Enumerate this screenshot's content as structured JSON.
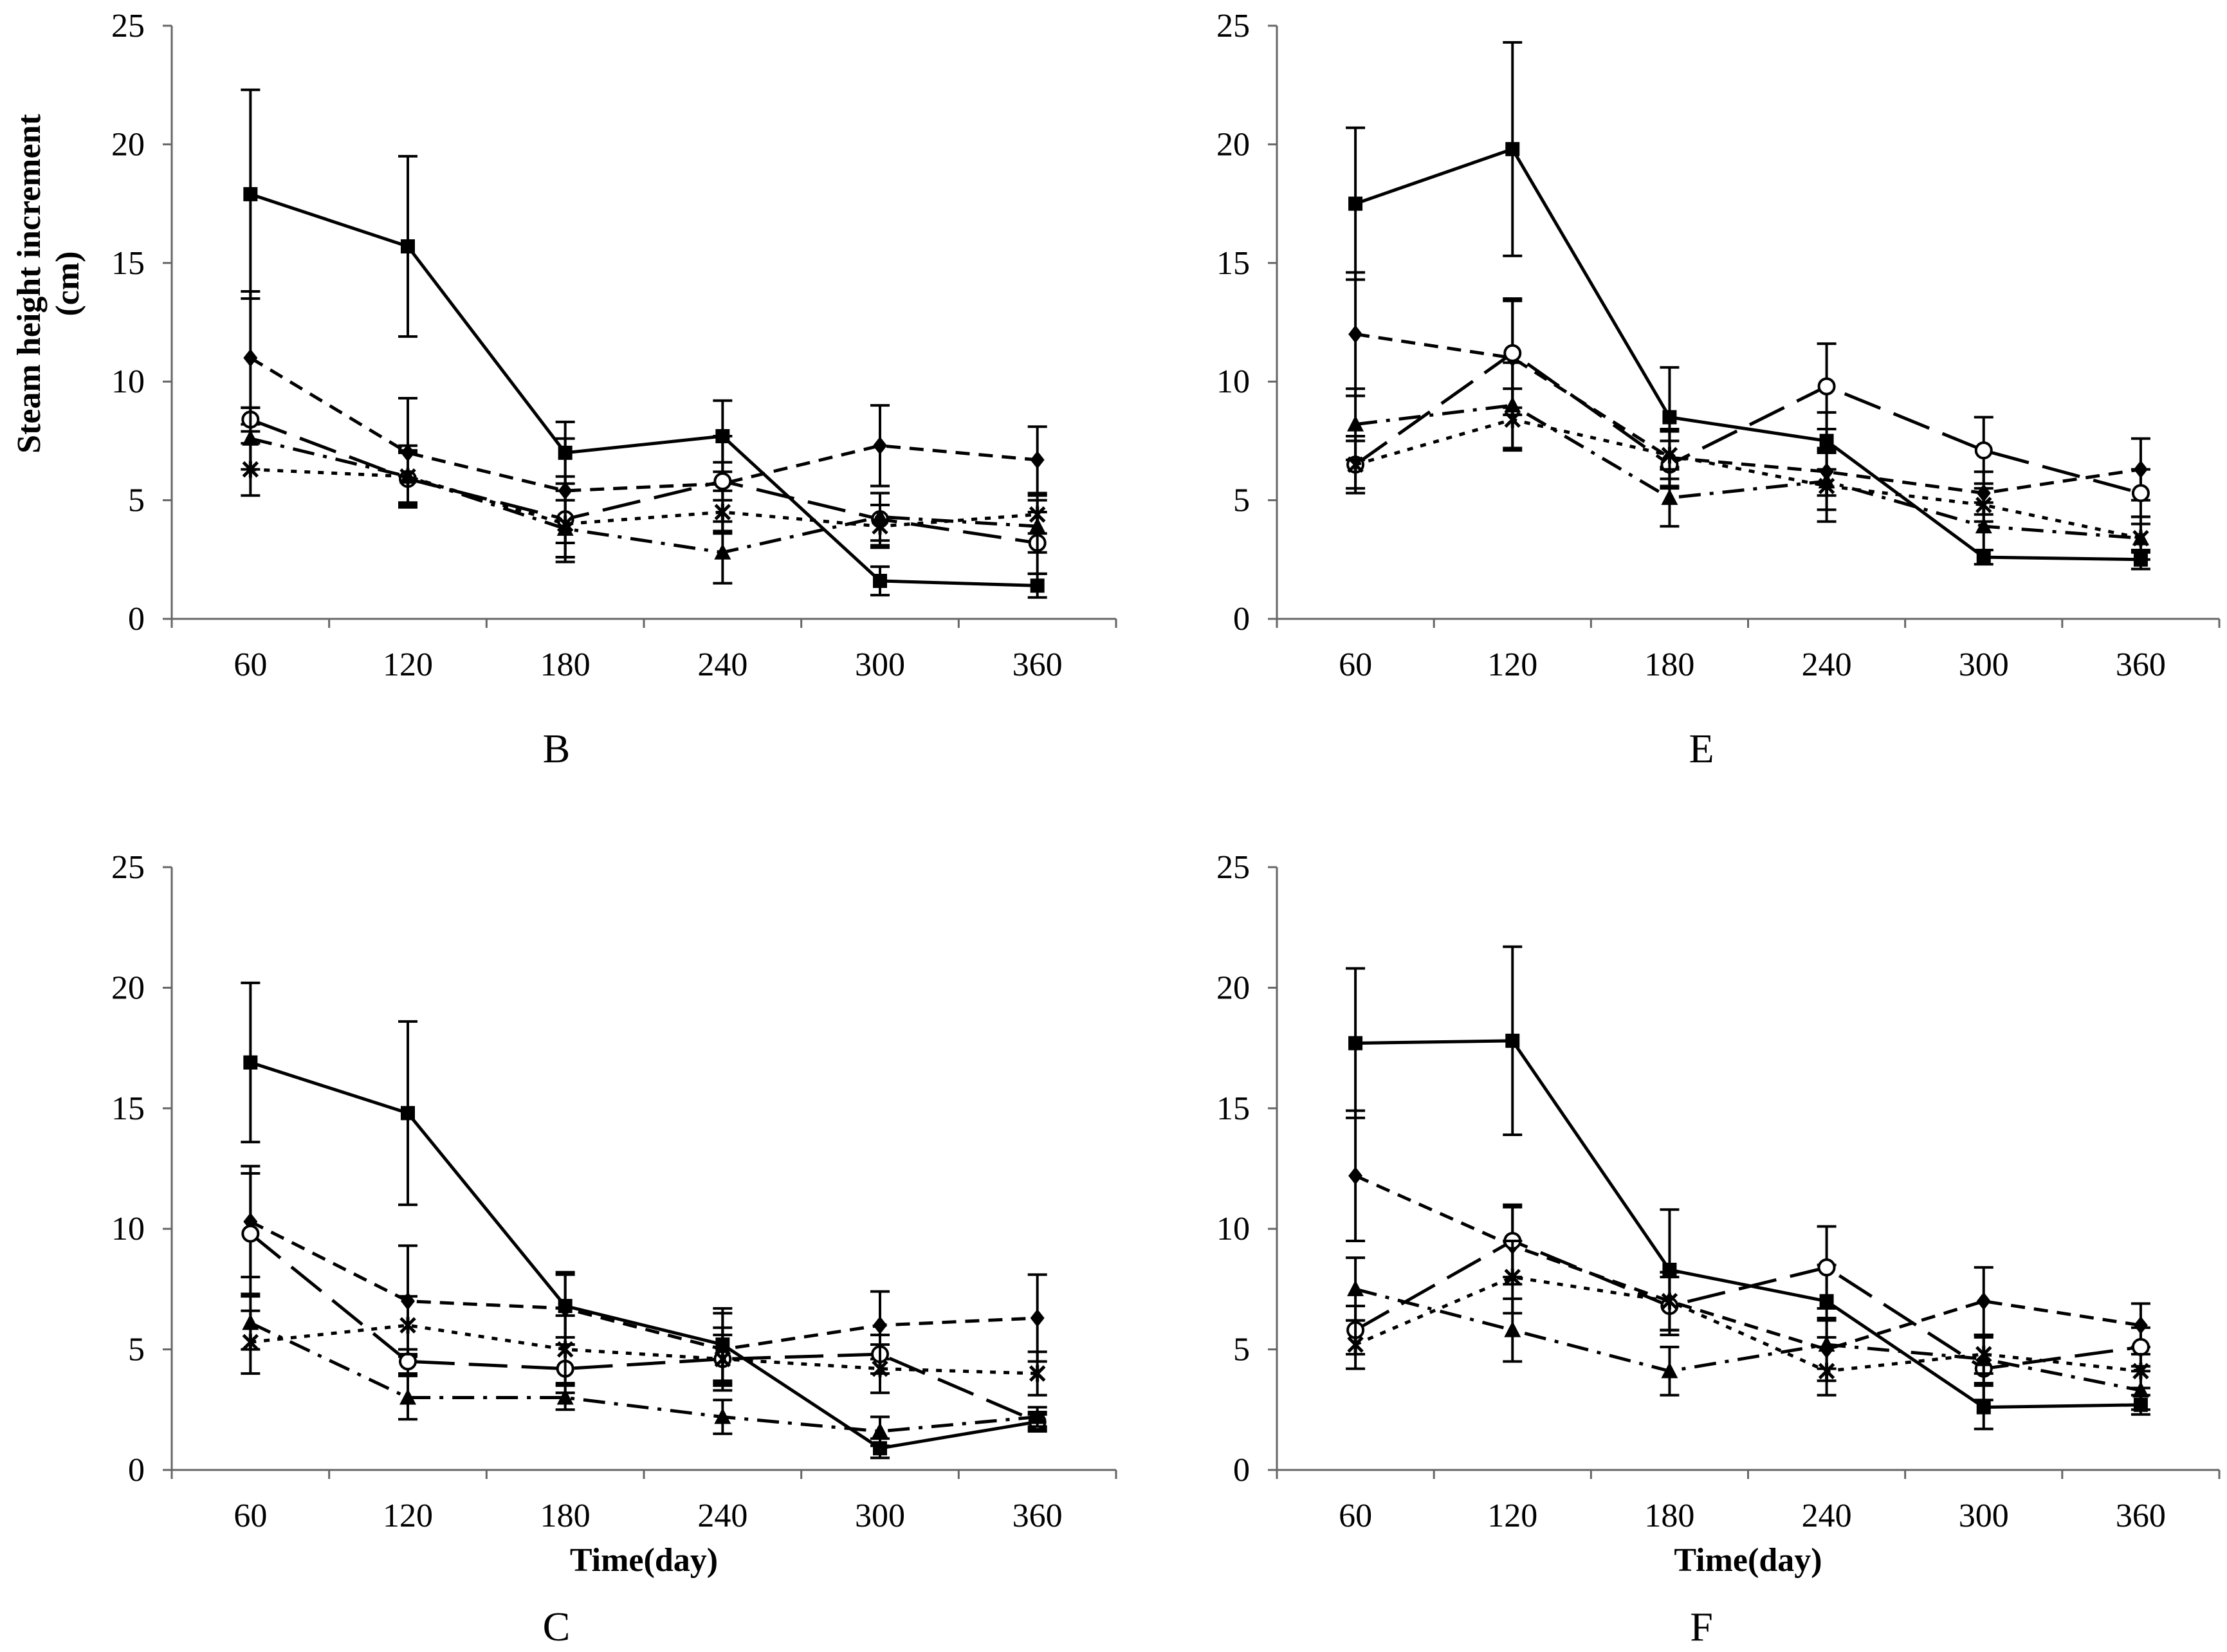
{
  "figure": {
    "title": ""
  },
  "chart_data": [
    {
      "panel": "B",
      "type": "line",
      "panel_label": "B",
      "ylabel": "Steam height increment (cm)",
      "ylabel_line1": "Steam height increment",
      "ylabel_line2": "(cm)",
      "xlabel": "",
      "ylim": [
        0,
        25
      ],
      "yticks": [
        0,
        5,
        10,
        15,
        20,
        25
      ],
      "x": [
        60,
        120,
        180,
        240,
        300,
        360
      ],
      "series": [
        {
          "name": "series-1",
          "marker": "square",
          "dash": "solid",
          "values": [
            17.9,
            15.7,
            7.0,
            7.7,
            1.6,
            1.4
          ],
          "errors": [
            4.4,
            3.8,
            1.3,
            1.5,
            0.6,
            0.5
          ]
        },
        {
          "name": "series-2",
          "marker": "diamond",
          "dash": "short-dash",
          "values": [
            11.0,
            7.0,
            5.4,
            5.7,
            7.3,
            6.7
          ],
          "errors": [
            2.8,
            2.3,
            2.2,
            2.0,
            1.7,
            1.4
          ]
        },
        {
          "name": "series-3",
          "marker": "circle",
          "dash": "long-dash",
          "values": [
            8.4,
            5.9,
            4.2,
            5.8,
            4.2,
            3.2
          ],
          "errors": [
            0.5,
            1.1,
            1.8,
            0.8,
            1.1,
            1.3
          ]
        },
        {
          "name": "series-4",
          "marker": "triangle",
          "dash": "dash-dot",
          "values": [
            7.6,
            6.0,
            3.8,
            2.8,
            4.3,
            3.9
          ],
          "errors": [
            1.3,
            1.1,
            1.2,
            1.3,
            1.0,
            1.1
          ]
        },
        {
          "name": "series-5",
          "marker": "star",
          "dash": "dot",
          "values": [
            6.3,
            6.0,
            4.0,
            4.5,
            3.9,
            4.4
          ],
          "errors": [
            1.1,
            1.3,
            1.4,
            0.9,
            0.9,
            0.8
          ]
        }
      ]
    },
    {
      "panel": "E",
      "type": "line",
      "panel_label": "E",
      "ylabel": "",
      "xlabel": "",
      "ylim": [
        0,
        25
      ],
      "yticks": [
        0,
        5,
        10,
        15,
        20,
        25
      ],
      "x": [
        60,
        120,
        180,
        240,
        300,
        360
      ],
      "series": [
        {
          "name": "series-1",
          "marker": "square",
          "dash": "solid",
          "values": [
            17.5,
            19.8,
            8.5,
            7.5,
            2.6,
            2.5
          ],
          "errors": [
            3.2,
            4.5,
            2.1,
            1.2,
            0.3,
            0.4
          ]
        },
        {
          "name": "series-2",
          "marker": "diamond",
          "dash": "short-dash",
          "values": [
            12.0,
            11.0,
            6.8,
            6.2,
            5.3,
            6.3
          ],
          "errors": [
            2.6,
            2.4,
            1.2,
            1.0,
            0.9,
            1.3
          ]
        },
        {
          "name": "series-3",
          "marker": "circle",
          "dash": "long-dash",
          "values": [
            6.5,
            11.2,
            6.5,
            9.8,
            7.1,
            5.3
          ],
          "errors": [
            1.2,
            2.3,
            1.0,
            1.8,
            1.4,
            1.0
          ]
        },
        {
          "name": "series-4",
          "marker": "triangle",
          "dash": "dash-dot",
          "values": [
            8.2,
            9.0,
            5.1,
            5.8,
            3.9,
            3.4
          ],
          "errors": [
            1.5,
            1.8,
            1.2,
            1.2,
            1.0,
            0.9
          ]
        },
        {
          "name": "series-5",
          "marker": "star",
          "dash": "dot",
          "values": [
            6.5,
            8.4,
            6.9,
            5.6,
            4.8,
            3.4
          ],
          "errors": [
            1.0,
            1.3,
            1.0,
            1.5,
            0.7,
            0.6
          ]
        }
      ]
    },
    {
      "panel": "C",
      "type": "line",
      "panel_label": "C",
      "ylabel": "",
      "xlabel": "Time(day)",
      "ylim": [
        0,
        25
      ],
      "yticks": [
        0,
        5,
        10,
        15,
        20,
        25
      ],
      "x": [
        60,
        120,
        180,
        240,
        300,
        360
      ],
      "series": [
        {
          "name": "series-1",
          "marker": "square",
          "dash": "solid",
          "values": [
            16.9,
            14.8,
            6.8,
            5.2,
            0.9,
            2.0
          ],
          "errors": [
            3.3,
            3.8,
            1.3,
            1.5,
            0.4,
            0.3
          ]
        },
        {
          "name": "series-2",
          "marker": "diamond",
          "dash": "short-dash",
          "values": [
            10.3,
            7.0,
            6.7,
            5.0,
            6.0,
            6.3
          ],
          "errors": [
            2.3,
            2.3,
            1.5,
            1.5,
            1.4,
            1.8
          ]
        },
        {
          "name": "series-3",
          "marker": "circle",
          "dash": "long-dash",
          "values": [
            9.8,
            4.5,
            4.2,
            4.6,
            4.8,
            2.0
          ],
          "errors": [
            2.5,
            0.5,
            1.0,
            1.3,
            0.8,
            0.4
          ]
        },
        {
          "name": "series-4",
          "marker": "triangle",
          "dash": "dash-dot",
          "values": [
            6.1,
            3.0,
            3.0,
            2.2,
            1.6,
            2.2
          ],
          "errors": [
            1.1,
            0.9,
            0.5,
            0.7,
            0.6,
            0.4
          ]
        },
        {
          "name": "series-5",
          "marker": "star",
          "dash": "dot",
          "values": [
            5.3,
            6.0,
            5.0,
            4.6,
            4.2,
            4.0
          ],
          "errors": [
            1.3,
            1.2,
            1.4,
            1.0,
            1.0,
            0.9
          ]
        }
      ]
    },
    {
      "panel": "F",
      "type": "line",
      "panel_label": "F",
      "ylabel": "",
      "xlabel": "Time(day)",
      "ylim": [
        0,
        25
      ],
      "yticks": [
        0,
        5,
        10,
        15,
        20,
        25
      ],
      "x": [
        60,
        120,
        180,
        240,
        300,
        360
      ],
      "series": [
        {
          "name": "series-1",
          "marker": "square",
          "dash": "solid",
          "values": [
            17.7,
            17.8,
            8.3,
            7.0,
            2.6,
            2.7
          ],
          "errors": [
            3.1,
            3.9,
            2.5,
            1.5,
            0.9,
            0.4
          ]
        },
        {
          "name": "series-2",
          "marker": "diamond",
          "dash": "short-dash",
          "values": [
            12.2,
            9.3,
            7.0,
            5.0,
            7.0,
            6.0
          ],
          "errors": [
            2.7,
            1.6,
            1.2,
            1.3,
            1.4,
            0.9
          ]
        },
        {
          "name": "series-3",
          "marker": "circle",
          "dash": "long-dash",
          "values": [
            5.8,
            9.5,
            6.8,
            8.4,
            4.2,
            5.1
          ],
          "errors": [
            1.0,
            1.5,
            1.2,
            1.7,
            1.3,
            0.8
          ]
        },
        {
          "name": "series-4",
          "marker": "triangle",
          "dash": "dash-dot",
          "values": [
            7.5,
            5.8,
            4.1,
            5.2,
            4.6,
            3.3
          ],
          "errors": [
            1.3,
            1.3,
            1.0,
            1.0,
            1.0,
            0.8
          ]
        },
        {
          "name": "series-5",
          "marker": "star",
          "dash": "dot",
          "values": [
            5.2,
            8.0,
            7.0,
            4.1,
            4.8,
            4.1
          ],
          "errors": [
            1.0,
            1.5,
            1.2,
            1.0,
            0.8,
            0.7
          ]
        }
      ]
    }
  ]
}
